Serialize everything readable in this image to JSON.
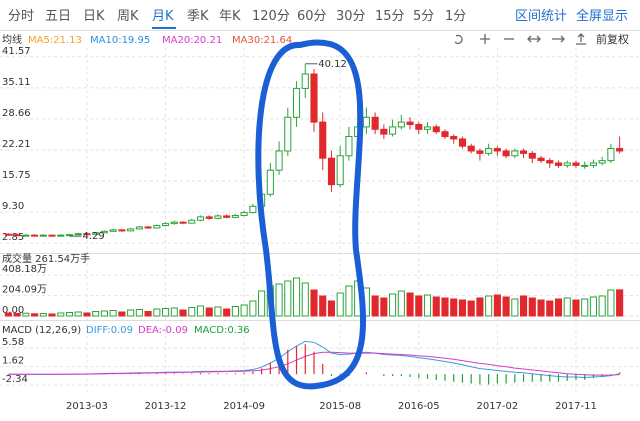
{
  "toolbar": {
    "tabs": [
      "分时",
      "五日",
      "日K",
      "周K",
      "月K",
      "季K",
      "年K",
      "120分",
      "60分",
      "30分",
      "15分",
      "5分",
      "1分"
    ],
    "selected_tab": 4,
    "actions": [
      "区间统计",
      "全屏显示"
    ]
  },
  "chart_data": [
    {
      "type": "candlestick",
      "label": "均线",
      "adjustment": "前复权",
      "indicators": [
        {
          "label": "MA5:21.13",
          "color": "#f5a623"
        },
        {
          "label": "MA10:19.95",
          "color": "#2d8fe0"
        },
        {
          "label": "MA20:20.21",
          "color": "#d63cc8"
        },
        {
          "label": "MA30:21.64",
          "color": "#e8533a"
        }
      ],
      "up_color": "#2aa43a",
      "down_color": "#e0282d",
      "categories": [
        null,
        null,
        null,
        null,
        null,
        null,
        null,
        null,
        null,
        "2013-03",
        null,
        null,
        null,
        null,
        null,
        null,
        null,
        null,
        "2013-12",
        null,
        null,
        null,
        null,
        null,
        null,
        null,
        null,
        "2014-09",
        null,
        null,
        null,
        null,
        null,
        null,
        null,
        null,
        null,
        null,
        "2015-08",
        null,
        null,
        null,
        null,
        null,
        null,
        null,
        null,
        "2016-05",
        null,
        null,
        null,
        null,
        null,
        null,
        null,
        null,
        "2017-02",
        null,
        null,
        null,
        null,
        null,
        null,
        null,
        null,
        "2017-11",
        null,
        null,
        null,
        null,
        null
      ],
      "open": [
        4.7,
        4.6,
        4.5,
        4.5,
        4.4,
        4.5,
        4.4,
        4.5,
        4.6,
        4.8,
        4.7,
        5.0,
        5.3,
        5.6,
        5.4,
        5.8,
        6.2,
        6.0,
        6.5,
        6.9,
        7.2,
        7.0,
        7.6,
        8.3,
        8.0,
        8.5,
        8.2,
        8.6,
        9.2,
        10.5,
        13.0,
        18.0,
        22.0,
        29.0,
        35.0,
        38.0,
        28.0,
        20.5,
        15.0,
        21.0,
        25.0,
        27.0,
        29.0,
        26.5,
        25.5,
        27.0,
        28.0,
        27.5,
        26.5,
        27.0,
        26.0,
        25.0,
        24.5,
        23.0,
        22.0,
        21.5,
        22.5,
        22.0,
        21.0,
        22.0,
        21.5,
        20.5,
        20.0,
        19.5,
        19.0,
        19.5,
        19.0,
        19.0,
        19.5,
        20.0,
        22.5
      ],
      "high": [
        4.9,
        4.8,
        4.7,
        4.7,
        4.7,
        4.6,
        4.7,
        4.8,
        5.0,
        5.0,
        5.2,
        5.5,
        5.8,
        5.8,
        6.0,
        6.4,
        6.4,
        6.7,
        7.2,
        7.5,
        7.4,
        7.9,
        8.6,
        8.6,
        8.8,
        8.8,
        8.9,
        9.6,
        11.0,
        13.8,
        19.5,
        24.0,
        31.0,
        36.5,
        40.12,
        39.0,
        30.0,
        22.0,
        23.0,
        27.0,
        33.0,
        31.0,
        30.0,
        27.5,
        28.5,
        29.5,
        29.0,
        28.0,
        28.0,
        27.5,
        26.5,
        25.5,
        25.0,
        23.5,
        22.5,
        23.5,
        23.0,
        22.5,
        22.5,
        22.5,
        22.0,
        21.0,
        20.5,
        20.0,
        20.0,
        20.0,
        19.8,
        20.2,
        20.8,
        23.5,
        25.0
      ],
      "low": [
        4.4,
        4.3,
        4.4,
        4.3,
        4.3,
        4.3,
        4.3,
        4.29,
        4.5,
        4.5,
        4.6,
        4.9,
        5.2,
        5.2,
        5.3,
        5.7,
        5.8,
        5.9,
        6.3,
        6.7,
        6.8,
        6.9,
        7.4,
        7.7,
        7.8,
        8.0,
        8.0,
        8.4,
        9.0,
        10.2,
        12.5,
        17.0,
        21.0,
        27.0,
        33.0,
        26.0,
        18.0,
        13.5,
        14.5,
        20.0,
        24.0,
        25.5,
        25.5,
        24.5,
        25.0,
        26.5,
        26.5,
        25.5,
        25.5,
        25.5,
        24.5,
        23.5,
        22.5,
        21.5,
        20.0,
        21.0,
        21.0,
        20.5,
        20.5,
        20.5,
        19.5,
        19.5,
        18.5,
        18.5,
        18.5,
        18.5,
        18.3,
        18.5,
        19.0,
        19.5,
        21.5
      ],
      "close": [
        4.6,
        4.5,
        4.5,
        4.4,
        4.5,
        4.4,
        4.5,
        4.6,
        4.8,
        4.7,
        5.0,
        5.3,
        5.6,
        5.4,
        5.8,
        6.2,
        6.0,
        6.5,
        6.9,
        7.2,
        7.0,
        7.6,
        8.3,
        8.0,
        8.5,
        8.2,
        8.6,
        9.2,
        10.5,
        13.0,
        18.0,
        22.0,
        29.0,
        35.0,
        38.0,
        28.0,
        20.5,
        15.0,
        21.0,
        25.0,
        27.0,
        29.0,
        26.5,
        25.5,
        27.0,
        28.0,
        27.5,
        26.5,
        27.0,
        26.0,
        25.0,
        24.5,
        23.0,
        22.0,
        21.5,
        22.5,
        22.0,
        21.0,
        22.0,
        21.5,
        20.5,
        20.0,
        19.5,
        19.0,
        19.5,
        19.0,
        19.0,
        19.5,
        20.0,
        22.5,
        22.0
      ],
      "ylim": [
        1.0,
        43.4
      ],
      "yticks": [
        41.57,
        35.11,
        28.66,
        22.21,
        15.75,
        {
          "value": 9.3,
          "label": "9.30"
        },
        2.85
      ]
    },
    {
      "type": "volume",
      "title": "成交量 261.54万手",
      "values": [
        30,
        25,
        28,
        22,
        25,
        20,
        30,
        35,
        40,
        30,
        45,
        50,
        55,
        40,
        60,
        65,
        45,
        70,
        75,
        80,
        60,
        85,
        100,
        80,
        90,
        70,
        95,
        110,
        150,
        250,
        300,
        320,
        350,
        380,
        330,
        260,
        200,
        150,
        230,
        300,
        350,
        280,
        200,
        180,
        220,
        250,
        230,
        200,
        210,
        190,
        180,
        170,
        160,
        150,
        180,
        200,
        210,
        190,
        170,
        200,
        180,
        160,
        150,
        170,
        180,
        160,
        170,
        190,
        200,
        260,
        261.54
      ],
      "ylim": [
        0,
        500
      ],
      "yticks": [
        {
          "value": 408.18,
          "label": "408.18万"
        },
        {
          "value": 204.09,
          "label": "204.09万"
        },
        {
          "value": 0,
          "label": "0.00"
        }
      ]
    },
    {
      "type": "macd",
      "title": "MACD (12,26,9)",
      "legend": [
        "DIFF:0.09",
        "DEA:-0.09",
        "MACD:0.36"
      ],
      "series": [
        {
          "name": "DIFF",
          "color": "#3a9be0",
          "values": [
            0.0,
            0.0,
            0.0,
            -0.05,
            -0.05,
            -0.05,
            0.0,
            0.0,
            0.05,
            0.05,
            0.1,
            0.15,
            0.2,
            0.2,
            0.25,
            0.3,
            0.3,
            0.35,
            0.4,
            0.45,
            0.45,
            0.5,
            0.6,
            0.6,
            0.65,
            0.65,
            0.7,
            0.8,
            1.0,
            1.5,
            2.4,
            3.4,
            4.8,
            6.0,
            7.0,
            6.8,
            5.8,
            4.5,
            4.2,
            4.3,
            4.5,
            4.7,
            4.5,
            4.2,
            4.1,
            4.0,
            3.8,
            3.5,
            3.3,
            3.0,
            2.7,
            2.4,
            2.0,
            1.6,
            1.2,
            1.0,
            0.8,
            0.6,
            0.4,
            0.3,
            0.1,
            -0.1,
            -0.3,
            -0.5,
            -0.6,
            -0.6,
            -0.7,
            -0.6,
            -0.5,
            -0.3,
            0.09
          ]
        },
        {
          "name": "DEA",
          "color": "#d63cc8",
          "values": [
            0.0,
            0.0,
            0.0,
            0.0,
            -0.02,
            -0.03,
            -0.02,
            -0.02,
            0.0,
            0.02,
            0.05,
            0.08,
            0.12,
            0.15,
            0.18,
            0.22,
            0.25,
            0.28,
            0.32,
            0.36,
            0.39,
            0.42,
            0.47,
            0.5,
            0.54,
            0.57,
            0.6,
            0.65,
            0.72,
            0.88,
            1.2,
            1.6,
            2.2,
            3.0,
            3.8,
            4.4,
            4.7,
            4.7,
            4.6,
            4.5,
            4.5,
            4.5,
            4.5,
            4.4,
            4.3,
            4.2,
            4.1,
            3.9,
            3.8,
            3.6,
            3.4,
            3.2,
            2.9,
            2.6,
            2.3,
            2.1,
            1.8,
            1.6,
            1.3,
            1.1,
            0.9,
            0.7,
            0.5,
            0.3,
            0.1,
            0.0,
            -0.1,
            -0.2,
            -0.2,
            -0.2,
            -0.09
          ]
        },
        {
          "name": "MACD",
          "color": "#1fa03a",
          "values": [
            0,
            0,
            0,
            -0.1,
            -0.06,
            -0.04,
            0.04,
            0.04,
            0.1,
            0.06,
            0.1,
            0.14,
            0.16,
            0.1,
            0.14,
            0.16,
            0.1,
            0.14,
            0.16,
            0.18,
            0.12,
            0.16,
            0.26,
            0.2,
            0.22,
            0.16,
            0.2,
            0.3,
            0.56,
            1.24,
            2.4,
            3.6,
            5.2,
            6.0,
            6.4,
            4.8,
            2.2,
            -0.4,
            -0.8,
            -0.4,
            0.0,
            0.4,
            0,
            -0.4,
            -0.4,
            -0.4,
            -0.6,
            -0.8,
            -1.0,
            -1.2,
            -1.4,
            -1.6,
            -1.8,
            -2.0,
            -2.2,
            -2.2,
            -2.0,
            -2.0,
            -1.8,
            -1.6,
            -1.6,
            -1.6,
            -1.6,
            -1.6,
            -1.4,
            -1.2,
            -1.2,
            -0.8,
            -0.6,
            -0.2,
            0.36
          ]
        }
      ],
      "positive_color": "#e0282d",
      "ylim": [
        -3.8,
        7.3
      ],
      "yticks": [
        5.58,
        1.62,
        -2.34
      ]
    }
  ]
}
